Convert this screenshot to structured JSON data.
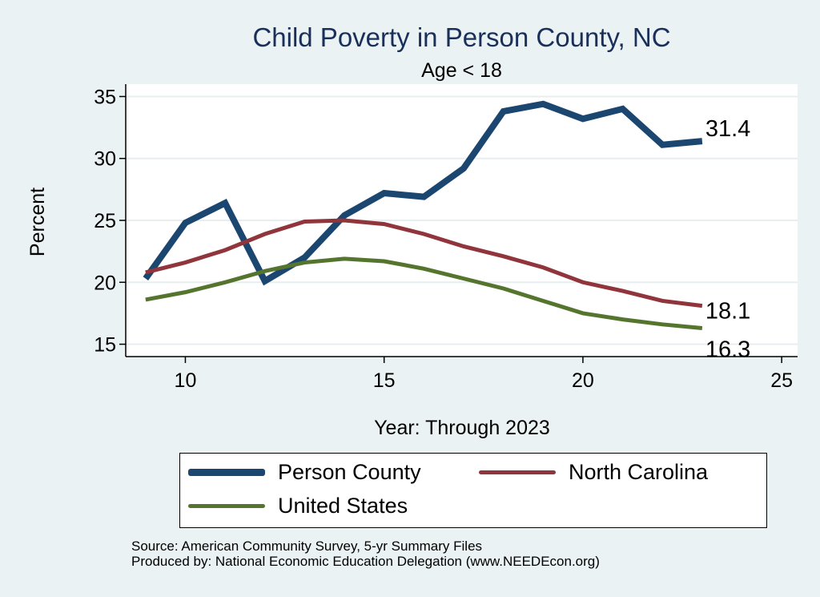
{
  "chart_data": {
    "type": "line",
    "title": "Child Poverty in Person County, NC",
    "subtitle": "Age < 18",
    "xlabel": "Year: Through 2023",
    "ylabel": "Percent",
    "xlim": [
      8.5,
      25.4
    ],
    "ylim": [
      14,
      36
    ],
    "xticks": [
      10,
      15,
      20,
      25
    ],
    "yticks": [
      15,
      20,
      25,
      30,
      35
    ],
    "x": [
      9,
      10,
      11,
      12,
      13,
      14,
      15,
      16,
      17,
      18,
      19,
      20,
      21,
      22,
      23
    ],
    "series": [
      {
        "name": "Person County",
        "color": "#1a4670",
        "width": 8,
        "values": [
          20.3,
          24.8,
          26.4,
          20.1,
          22.0,
          25.4,
          27.2,
          26.9,
          29.2,
          33.8,
          34.4,
          33.2,
          34.0,
          31.1,
          31.4
        ],
        "end_label": "31.4"
      },
      {
        "name": "North Carolina",
        "color": "#90353b",
        "width": 5,
        "values": [
          20.8,
          21.6,
          22.6,
          23.9,
          24.9,
          25.0,
          24.7,
          23.9,
          22.9,
          22.1,
          21.2,
          20.0,
          19.3,
          18.5,
          18.1
        ],
        "end_label": "18.1"
      },
      {
        "name": "United States",
        "color": "#55752f",
        "width": 5,
        "values": [
          18.6,
          19.2,
          20.0,
          20.9,
          21.6,
          21.9,
          21.7,
          21.1,
          20.3,
          19.5,
          18.5,
          17.5,
          17.0,
          16.6,
          16.3
        ],
        "end_label": "16.3"
      }
    ],
    "legend": [
      {
        "name": "Person County",
        "color": "#1a4670"
      },
      {
        "name": "North Carolina",
        "color": "#90353b"
      },
      {
        "name": "United States",
        "color": "#55752f"
      }
    ],
    "legend_position": "bottom",
    "grid": true
  },
  "source": {
    "line1": "Source: American Community Survey, 5-yr Summary Files",
    "line2": "Produced by: National Economic Education Delegation (www.NEEDEcon.org)"
  }
}
